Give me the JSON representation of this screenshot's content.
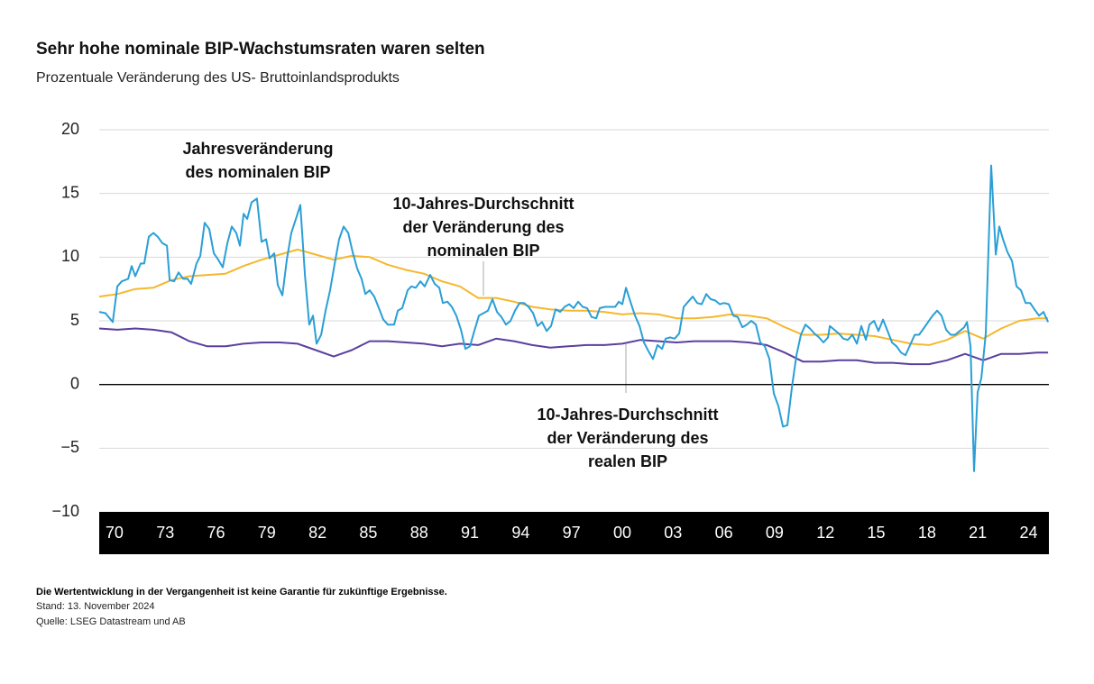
{
  "chart_data": {
    "type": "line",
    "title": "Sehr hohe nominale BIP-Wachstumsraten waren selten",
    "subtitle": "Prozentuale Veränderung des US- Bruttoinlandsprodukts",
    "xlim": [
      1969.1,
      2025.2
    ],
    "ylim": [
      -10,
      20
    ],
    "yticks": [
      20,
      15,
      10,
      5,
      0,
      {
        "value": -5,
        "label": "−5"
      },
      {
        "value": -10,
        "label": "−10"
      }
    ],
    "xticks": [
      {
        "value": 1970,
        "label": "70"
      },
      {
        "value": 1973,
        "label": "73"
      },
      {
        "value": 1976,
        "label": "76"
      },
      {
        "value": 1979,
        "label": "79"
      },
      {
        "value": 1982,
        "label": "82"
      },
      {
        "value": 1985,
        "label": "85"
      },
      {
        "value": 1988,
        "label": "88"
      },
      {
        "value": 1991,
        "label": "91"
      },
      {
        "value": 1994,
        "label": "94"
      },
      {
        "value": 1997,
        "label": "97"
      },
      {
        "value": 2000,
        "label": "00"
      },
      {
        "value": 2003,
        "label": "03"
      },
      {
        "value": 2006,
        "label": "06"
      },
      {
        "value": 2009,
        "label": "09"
      },
      {
        "value": 2012,
        "label": "12"
      },
      {
        "value": 2015,
        "label": "15"
      },
      {
        "value": 2018,
        "label": "18"
      },
      {
        "value": 2021,
        "label": "21"
      },
      {
        "value": 2024,
        "label": "24"
      }
    ],
    "grid": true,
    "series": [
      {
        "color": "#2a9fd6",
        "x": [
          1969.1,
          1969.47,
          1969.9,
          1970.17,
          1970.43,
          1970.81,
          1971.02,
          1971.23,
          1971.55,
          1971.76,
          1972.03,
          1972.3,
          1972.56,
          1972.83,
          1973.1,
          1973.26,
          1973.52,
          1973.79,
          1974.06,
          1974.32,
          1974.53,
          1974.85,
          1975.07,
          1975.33,
          1975.6,
          1975.87,
          1976.13,
          1976.4,
          1976.67,
          1976.93,
          1977.2,
          1977.41,
          1977.63,
          1977.84,
          1978.1,
          1978.42,
          1978.69,
          1978.96,
          1979.17,
          1979.44,
          1979.65,
          1979.92,
          1980.18,
          1980.45,
          1980.72,
          1980.98,
          1981.25,
          1981.51,
          1981.73,
          1981.94,
          1982.21,
          1982.47,
          1982.74,
          1983.01,
          1983.27,
          1983.54,
          1983.81,
          1984.07,
          1984.34,
          1984.6,
          1984.82,
          1985.08,
          1985.35,
          1985.62,
          1985.88,
          1986.15,
          1986.52,
          1986.74,
          1987.0,
          1987.32,
          1987.54,
          1987.8,
          1988.07,
          1988.33,
          1988.65,
          1988.92,
          1989.19,
          1989.4,
          1989.67,
          1989.93,
          1990.2,
          1990.47,
          1990.73,
          1991.0,
          1991.26,
          1991.53,
          1991.8,
          1992.06,
          1992.33,
          1992.6,
          1992.86,
          1993.13,
          1993.4,
          1993.66,
          1993.93,
          1994.2,
          1994.46,
          1994.73,
          1994.99,
          1995.26,
          1995.53,
          1995.79,
          1996.06,
          1996.33,
          1996.59,
          1996.86,
          1997.13,
          1997.39,
          1997.66,
          1997.92,
          1998.19,
          1998.46,
          1998.67,
          1998.99,
          1999.31,
          1999.58,
          1999.79,
          2000.0,
          2000.22,
          2000.48,
          2000.75,
          2001.02,
          2001.28,
          2001.55,
          2001.81,
          2002.08,
          2002.35,
          2002.56,
          2002.83,
          2003.09,
          2003.36,
          2003.63,
          2003.89,
          2004.16,
          2004.42,
          2004.69,
          2004.96,
          2005.22,
          2005.49,
          2005.76,
          2006.02,
          2006.29,
          2006.56,
          2006.82,
          2007.09,
          2007.36,
          2007.62,
          2007.89,
          2008.15,
          2008.42,
          2008.69,
          2008.95,
          2009.22,
          2009.49,
          2009.75,
          2010.02,
          2010.29,
          2010.55,
          2010.82,
          2011.08,
          2011.35,
          2011.62,
          2011.88,
          2012.15,
          2012.26,
          2012.52,
          2012.79,
          2013.06,
          2013.32,
          2013.59,
          2013.86,
          2014.12,
          2014.39,
          2014.6,
          2014.87,
          2015.13,
          2015.4,
          2015.67,
          2015.93,
          2016.2,
          2016.47,
          2016.73,
          2017.0,
          2017.27,
          2017.53,
          2017.8,
          2018.06,
          2018.33,
          2018.6,
          2018.86,
          2019.13,
          2019.4,
          2019.66,
          2019.93,
          2020.2,
          2020.36,
          2020.57,
          2020.78,
          2020.99,
          2021.21,
          2021.47,
          2021.79,
          2022.06,
          2022.27,
          2022.49,
          2022.75,
          2023.02,
          2023.29,
          2023.55,
          2023.82,
          2024.09,
          2024.35,
          2024.62,
          2024.88,
          2025.15
        ],
        "values": [
          5.7,
          5.6,
          4.9,
          7.7,
          8.1,
          8.3,
          9.3,
          8.5,
          9.5,
          9.5,
          11.6,
          11.9,
          11.6,
          11.1,
          10.9,
          8.2,
          8.1,
          8.8,
          8.3,
          8.3,
          7.9,
          9.5,
          10.1,
          12.7,
          12.2,
          10.3,
          9.8,
          9.2,
          11.1,
          12.4,
          11.9,
          10.9,
          13.4,
          13.0,
          14.3,
          14.6,
          11.2,
          11.4,
          9.9,
          10.3,
          7.8,
          7.0,
          9.8,
          11.9,
          13.0,
          14.1,
          8.6,
          4.7,
          5.4,
          3.2,
          3.9,
          5.8,
          7.4,
          9.5,
          11.4,
          12.4,
          11.9,
          10.4,
          9.1,
          8.3,
          7.1,
          7.4,
          6.9,
          6.0,
          5.1,
          4.7,
          4.7,
          5.8,
          6.0,
          7.4,
          7.7,
          7.6,
          8.1,
          7.7,
          8.6,
          7.9,
          7.6,
          6.4,
          6.5,
          6.1,
          5.4,
          4.3,
          2.8,
          3.0,
          4.2,
          5.4,
          5.6,
          5.8,
          6.7,
          5.7,
          5.3,
          4.7,
          5.0,
          5.8,
          6.4,
          6.4,
          6.1,
          5.6,
          4.6,
          4.9,
          4.2,
          4.6,
          5.9,
          5.7,
          6.1,
          6.3,
          6.0,
          6.5,
          6.1,
          6.0,
          5.3,
          5.2,
          6.0,
          6.1,
          6.1,
          6.1,
          6.5,
          6.3,
          7.6,
          6.5,
          5.4,
          4.6,
          3.3,
          2.6,
          2.0,
          3.1,
          2.8,
          3.6,
          3.7,
          3.6,
          4.0,
          6.1,
          6.5,
          6.9,
          6.4,
          6.3,
          7.1,
          6.7,
          6.6,
          6.3,
          6.4,
          6.3,
          5.4,
          5.3,
          4.5,
          4.7,
          5.0,
          4.7,
          3.3,
          3.0,
          2.0,
          -0.7,
          -1.7,
          -3.3,
          -3.2,
          -0.2,
          2.3,
          3.9,
          4.7,
          4.4,
          4.0,
          3.7,
          3.3,
          3.7,
          4.6,
          4.3,
          4.0,
          3.6,
          3.5,
          3.9,
          3.2,
          4.6,
          3.5,
          4.7,
          5.0,
          4.2,
          5.1,
          4.2,
          3.3,
          3.0,
          2.5,
          2.3,
          3.1,
          3.9,
          3.9,
          4.4,
          4.9,
          5.4,
          5.8,
          5.4,
          4.3,
          3.9,
          3.9,
          4.2,
          4.5,
          4.9,
          3.0,
          -6.8,
          -0.6,
          0.5,
          4.0,
          17.2,
          10.2,
          12.4,
          11.4,
          10.4,
          9.7,
          7.7,
          7.4,
          6.4,
          6.4,
          5.9,
          5.4,
          5.7,
          4.9
        ]
      },
      {
        "color": "#f5b82e",
        "x": [
          1969.1,
          1970.17,
          1971.23,
          1972.3,
          1973.36,
          1974.43,
          1975.49,
          1976.56,
          1977.62,
          1978.69,
          1979.76,
          1980.82,
          1981.89,
          1982.95,
          1984.02,
          1985.08,
          1986.15,
          1987.22,
          1988.28,
          1989.35,
          1990.41,
          1991.48,
          1992.54,
          1993.61,
          1994.67,
          1995.74,
          1996.81,
          1997.87,
          1998.94,
          2000.0,
          2001.07,
          2002.14,
          2003.2,
          2004.27,
          2005.33,
          2006.4,
          2007.46,
          2008.53,
          2009.6,
          2010.66,
          2011.72,
          2012.79,
          2013.86,
          2014.92,
          2015.99,
          2017.05,
          2018.12,
          2019.18,
          2020.25,
          2021.32,
          2022.38,
          2023.45,
          2024.51,
          2025.15
        ],
        "values": [
          6.9,
          7.1,
          7.5,
          7.6,
          8.2,
          8.5,
          8.6,
          8.7,
          9.3,
          9.8,
          10.2,
          10.6,
          10.2,
          9.8,
          10.1,
          10.0,
          9.4,
          9.0,
          8.7,
          8.1,
          7.7,
          6.8,
          6.8,
          6.5,
          6.1,
          5.9,
          5.8,
          5.8,
          5.7,
          5.5,
          5.6,
          5.5,
          5.2,
          5.2,
          5.3,
          5.5,
          5.4,
          5.2,
          4.5,
          3.9,
          3.9,
          4.0,
          3.9,
          3.8,
          3.5,
          3.2,
          3.1,
          3.5,
          4.2,
          3.6,
          4.4,
          5.0,
          5.2,
          5.2
        ]
      },
      {
        "color": "#5b3f9e",
        "x": [
          1969.1,
          1970.17,
          1971.23,
          1972.3,
          1973.36,
          1974.43,
          1975.49,
          1976.56,
          1977.62,
          1978.69,
          1979.76,
          1980.82,
          1981.89,
          1982.95,
          1984.02,
          1985.08,
          1986.15,
          1987.22,
          1988.28,
          1989.35,
          1990.41,
          1991.48,
          1992.54,
          1993.61,
          1994.67,
          1995.74,
          1996.81,
          1997.87,
          1998.94,
          2000.0,
          2001.07,
          2002.14,
          2003.2,
          2004.27,
          2005.33,
          2006.4,
          2007.46,
          2008.53,
          2009.6,
          2010.66,
          2011.72,
          2012.79,
          2013.86,
          2014.92,
          2015.99,
          2017.05,
          2018.12,
          2019.18,
          2020.25,
          2021.32,
          2022.38,
          2023.45,
          2024.51,
          2025.15
        ],
        "values": [
          4.4,
          4.3,
          4.4,
          4.3,
          4.1,
          3.4,
          3.0,
          3.0,
          3.2,
          3.3,
          3.3,
          3.2,
          2.7,
          2.2,
          2.7,
          3.4,
          3.4,
          3.3,
          3.2,
          3.0,
          3.2,
          3.1,
          3.6,
          3.4,
          3.1,
          2.9,
          3.0,
          3.1,
          3.1,
          3.2,
          3.5,
          3.4,
          3.3,
          3.4,
          3.4,
          3.4,
          3.3,
          3.1,
          2.5,
          1.8,
          1.8,
          1.9,
          1.9,
          1.7,
          1.7,
          1.6,
          1.6,
          1.9,
          2.4,
          1.9,
          2.4,
          2.4,
          2.5,
          2.5
        ]
      }
    ],
    "annotations": [
      {
        "lines": [
          "Jahresveränderung",
          "des nominalen BIP"
        ]
      },
      {
        "lines": [
          "10-Jahres-Durchschnitt",
          "der Veränderung des",
          "nominalen BIP"
        ]
      },
      {
        "lines": [
          "10-Jahres-Durchschnitt",
          "der Veränderung des",
          "realen BIP"
        ]
      }
    ],
    "notes": [
      "Die Wertentwicklung in der Vergangenheit ist keine Garantie für zukünftige Ergebnisse.",
      "Stand: 13. November 2024",
      "Quelle: LSEG Datastream und AB"
    ]
  }
}
